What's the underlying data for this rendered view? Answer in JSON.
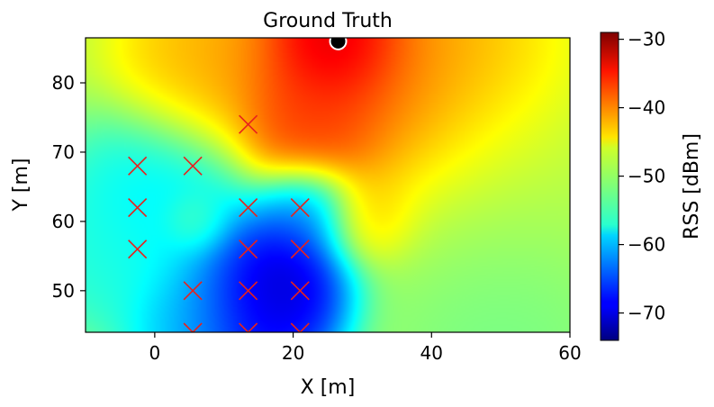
{
  "chart_data": {
    "type": "heatmap",
    "title": "Ground Truth",
    "xlabel": "X [m]",
    "ylabel": "Y [m]",
    "xlim": [
      -10,
      60
    ],
    "ylim": [
      44,
      86.5
    ],
    "xticks": [
      0,
      20,
      40,
      60
    ],
    "yticks": [
      50,
      60,
      70,
      80
    ],
    "colorbar": {
      "label": "RSS [dBm]",
      "range": [
        -74,
        -29
      ],
      "ticks": [
        -30,
        -40,
        -50,
        -60,
        -70
      ],
      "tick_labels": [
        "−30",
        "−40",
        "−50",
        "−60",
        "−70"
      ],
      "colormap": "jet"
    },
    "transmitter": {
      "x": 26.5,
      "y": 86.0,
      "rss": -29
    },
    "sensors": [
      {
        "x": 13.5,
        "y": 74
      },
      {
        "x": -2.5,
        "y": 68
      },
      {
        "x": 5.5,
        "y": 68
      },
      {
        "x": -2.5,
        "y": 62
      },
      {
        "x": 13.5,
        "y": 62
      },
      {
        "x": 21,
        "y": 62
      },
      {
        "x": -2.5,
        "y": 56
      },
      {
        "x": 13.5,
        "y": 56
      },
      {
        "x": 21,
        "y": 56
      },
      {
        "x": 5.5,
        "y": 50
      },
      {
        "x": 13.5,
        "y": 50
      },
      {
        "x": 21,
        "y": 50
      },
      {
        "x": 5.5,
        "y": 44
      },
      {
        "x": 13.5,
        "y": 44
      },
      {
        "x": 21,
        "y": 44
      }
    ],
    "field_sources": [
      {
        "x": 26.5,
        "y": 86,
        "value": -29,
        "sigma": 5
      },
      {
        "x": 26,
        "y": 80,
        "value": -34,
        "sigma": 9
      },
      {
        "x": 22,
        "y": 73,
        "value": -37,
        "sigma": 5
      },
      {
        "x": 8,
        "y": 82,
        "value": -42,
        "sigma": 7
      },
      {
        "x": 40,
        "y": 80,
        "value": -41,
        "sigma": 10
      },
      {
        "x": 18,
        "y": 52,
        "value": -74,
        "sigma": 6
      },
      {
        "x": 13,
        "y": 46,
        "value": -70,
        "sigma": 6
      },
      {
        "x": 22,
        "y": 62,
        "value": -66,
        "sigma": 4
      },
      {
        "x": 2,
        "y": 62,
        "value": -59,
        "sigma": 8
      },
      {
        "x": -7,
        "y": 55,
        "value": -56,
        "sigma": 6
      },
      {
        "x": 5,
        "y": 46,
        "value": -60,
        "sigma": 5
      },
      {
        "x": 31,
        "y": 61,
        "value": -43,
        "sigma": 4
      },
      {
        "x": 50,
        "y": 62,
        "value": -49,
        "sigma": 12
      },
      {
        "x": 50,
        "y": 48,
        "value": -53,
        "sigma": 9
      },
      {
        "x": 5.5,
        "y": 60,
        "value": -52,
        "sigma": 2.5
      }
    ],
    "background_value": -49
  }
}
